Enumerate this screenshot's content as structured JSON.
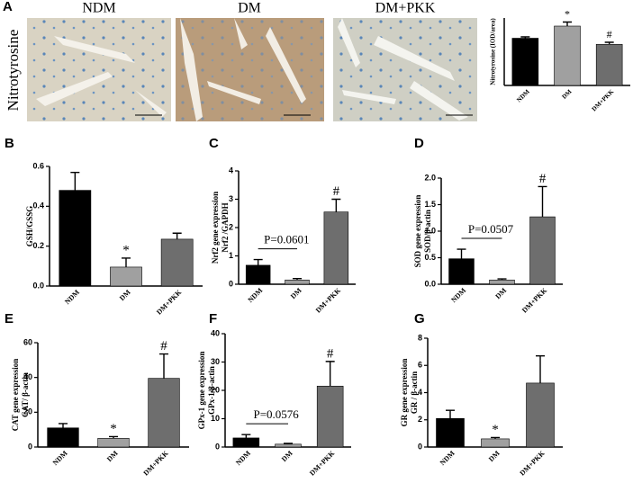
{
  "figure": {
    "row_label": "Nitrotyrosine",
    "image_labels": [
      "NDM",
      "DM",
      "DM+PKK"
    ]
  },
  "chart_data": [
    {
      "type": "bar",
      "label": "A",
      "ylabel": [
        "Nitrotyrosine (IOD/area)"
      ],
      "categories": [
        "NDM",
        "DM",
        "DM+PKK"
      ],
      "values": [
        7.0,
        8.8,
        6.1
      ],
      "errors": [
        0.2,
        0.6,
        0.3
      ],
      "colors": [
        "#000000",
        "#a0a0a0",
        "#6e6e6e"
      ],
      "value_marks": [
        null,
        "*",
        "#"
      ],
      "ylim": [
        0,
        10
      ]
    },
    {
      "type": "bar",
      "label": "B",
      "ylabel": [
        "GSH/GSSG"
      ],
      "categories": [
        "NDM",
        "DM",
        "DM+PKK"
      ],
      "values": [
        0.48,
        0.095,
        0.235
      ],
      "errors": [
        0.09,
        0.045,
        0.03
      ],
      "colors": [
        "#000000",
        "#a0a0a0",
        "#6e6e6e"
      ],
      "value_marks": [
        null,
        "*",
        null
      ],
      "ylim": [
        0,
        0.6
      ],
      "yticks": [
        {
          "value": 0,
          "label": "0.0"
        },
        {
          "value": 0.2,
          "label": "0.2"
        },
        {
          "value": 0.4,
          "label": "0.4"
        },
        {
          "value": 0.6,
          "label": "0.6"
        }
      ]
    },
    {
      "type": "bar",
      "label": "C",
      "ylabel": [
        "Nrf2 gene expression",
        "Nrf2 /GAPDH"
      ],
      "categories": [
        "NDM",
        "DM",
        "DM+PKK"
      ],
      "values": [
        0.67,
        0.15,
        2.55
      ],
      "errors": [
        0.2,
        0.05,
        0.45
      ],
      "colors": [
        "#000000",
        "#a0a0a0",
        "#6e6e6e"
      ],
      "value_marks": [
        null,
        null,
        "#"
      ],
      "p_label": "P=0.0601",
      "ylim": [
        0,
        4
      ],
      "yticks": [
        0,
        1,
        2,
        3,
        4
      ]
    },
    {
      "type": "bar",
      "label": "D",
      "ylabel": [
        "SOD gene expression",
        "SOD/β-actin"
      ],
      "categories": [
        "NDM",
        "DM",
        "DM+PKK"
      ],
      "values": [
        0.48,
        0.08,
        1.27
      ],
      "errors": [
        0.18,
        0.02,
        0.57
      ],
      "colors": [
        "#000000",
        "#a0a0a0",
        "#6e6e6e"
      ],
      "value_marks": [
        null,
        null,
        "#"
      ],
      "p_label": "P=0.0507",
      "ylim": [
        0,
        2
      ],
      "yticks": [
        {
          "value": 0,
          "label": "0.0"
        },
        {
          "value": 0.5,
          "label": "0.5"
        },
        {
          "value": 1,
          "label": "1.0"
        },
        {
          "value": 1.5,
          "label": "1.5"
        },
        {
          "value": 2,
          "label": "2.0"
        }
      ]
    },
    {
      "type": "bar",
      "label": "E",
      "ylabel": [
        "CAT gene expression",
        "CAT/ β-actin"
      ],
      "categories": [
        "NDM",
        "DM",
        "DM+PKK"
      ],
      "values": [
        11,
        5,
        39.5
      ],
      "errors": [
        2.5,
        1,
        14
      ],
      "colors": [
        "#000000",
        "#a0a0a0",
        "#6e6e6e"
      ],
      "value_marks": [
        null,
        "*",
        "#"
      ],
      "ylim": [
        0,
        60
      ],
      "yticks": [
        0,
        20,
        40,
        60
      ]
    },
    {
      "type": "bar",
      "label": "F",
      "ylabel": [
        "GPx-1 gene expression",
        "GPx-1/β-actin"
      ],
      "categories": [
        "NDM",
        "DM",
        "DM+PKK"
      ],
      "values": [
        3.2,
        1,
        21.5
      ],
      "errors": [
        1.2,
        0.3,
        8.7
      ],
      "colors": [
        "#000000",
        "#a0a0a0",
        "#6e6e6e"
      ],
      "value_marks": [
        null,
        null,
        "#"
      ],
      "p_label": "P=0.0576",
      "ylim": [
        0,
        40
      ],
      "yticks": [
        0,
        10,
        20,
        30,
        40
      ]
    },
    {
      "type": "bar",
      "label": "G",
      "ylabel": [
        "GR gene expression",
        "GR / β-actin"
      ],
      "categories": [
        "NDM",
        "DM",
        "DM+PKK"
      ],
      "values": [
        2.1,
        0.6,
        4.7
      ],
      "errors": [
        0.6,
        0.1,
        2.0
      ],
      "colors": [
        "#000000",
        "#a0a0a0",
        "#6e6e6e"
      ],
      "value_marks": [
        null,
        "*",
        null
      ],
      "ylim": [
        0,
        8
      ],
      "yticks": [
        0,
        2,
        4,
        6,
        8
      ]
    }
  ]
}
